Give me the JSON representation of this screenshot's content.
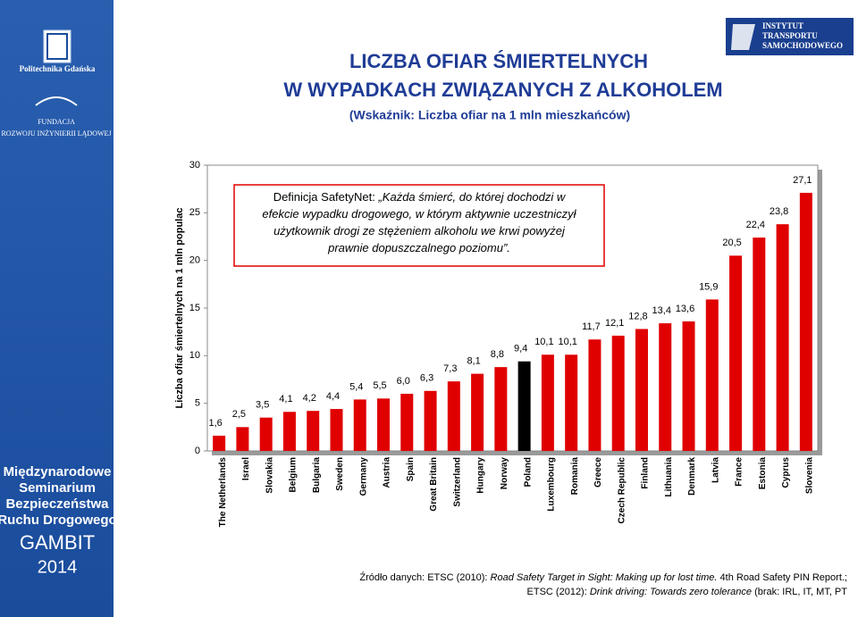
{
  "chart_data": {
    "type": "bar",
    "title": "LICZBA OFIAR ŚMIERTELNYCH",
    "title_line2": "W WYPADKACH ZWIĄZANYCH Z ALKOHOLEM",
    "subtitle": "(Wskaźnik: Liczba ofiar na 1 mln mieszkańców)",
    "y_label": "Liczba ofiar śmiertelnych na 1 mln populac",
    "categories": [
      "The Netherlands",
      "Israel",
      "Slovakia",
      "Belgium",
      "Bulgaria",
      "Sweden",
      "Germany",
      "Austria",
      "Spain",
      "Great Britain",
      "Switzerland",
      "Hungary",
      "Norway",
      "Poland",
      "Luxembourg",
      "Romania",
      "Greece",
      "Czech Republic",
      "Finland",
      "Lithuania",
      "Denmark",
      "Latvia",
      "France",
      "Estonia",
      "Cyprus",
      "Slovenia"
    ],
    "values": [
      1.6,
      2.5,
      3.5,
      4.1,
      4.2,
      4.4,
      5.4,
      5.5,
      6.0,
      6.3,
      7.3,
      8.1,
      8.8,
      9.4,
      10.1,
      10.1,
      11.7,
      12.1,
      12.8,
      13.4,
      13.6,
      15.9,
      20.5,
      22.4,
      23.8,
      27.1
    ],
    "value_labels": [
      "1,6",
      "2,5",
      "3,5",
      "4,1",
      "4,2",
      "4,4",
      "5,4",
      "5,5",
      "6,0",
      "6,3",
      "7,3",
      "8,1",
      "8,8",
      "9,4",
      "10,1",
      "10,1",
      "11,7",
      "12,1",
      "12,8",
      "13,4",
      "13,6",
      "15,9",
      "20,5",
      "22,4",
      "23,8",
      "27,1"
    ],
    "colors": [
      "#e00000",
      "#e00000",
      "#e00000",
      "#e00000",
      "#e00000",
      "#e00000",
      "#e00000",
      "#e00000",
      "#e00000",
      "#e00000",
      "#e00000",
      "#e00000",
      "#e00000",
      "#000000",
      "#e00000",
      "#e00000",
      "#e00000",
      "#e00000",
      "#e00000",
      "#e00000",
      "#e00000",
      "#e00000",
      "#e00000",
      "#e00000",
      "#e00000",
      "#e00000"
    ],
    "ylim": [
      0,
      30
    ],
    "yticks": [
      0,
      5,
      10,
      15,
      20,
      25,
      30
    ],
    "grid": false
  },
  "definition": {
    "label": "Definicja SafetyNet:",
    "lines": [
      " „Każda śmierć, do której dochodzi w",
      "efekcie wypadku drogowego, w którym aktywnie uczestniczył",
      "użytkownik drogi ze stężeniem alkoholu we krwi powyżej",
      "prawnie dopuszczalnego poziomu”."
    ]
  },
  "source": [
    [
      "Źródło danych: ETSC (2010): ",
      "Road Safety Target in Sight: Making up for lost time.",
      " 4th Road Safety PIN Report.;"
    ],
    [
      "ETSC (2012): ",
      "Drink driving: Towards zero tolerance",
      " (brak: IRL, IT, MT, PT"
    ]
  ],
  "sidebar": {
    "university": "Politechnika Gdańska",
    "foundation": [
      "FUNDACJA",
      "ROZWOJU INŻYNIERII LĄDOWEJ"
    ],
    "seminar": [
      "Międzynarodowe",
      "Seminarium",
      "Bezpieczeństwa",
      "Ruchu Drogowego"
    ],
    "gambit": "GAMBIT",
    "year": "2014"
  },
  "its_logo": [
    "INSTYTUT",
    "TRANSPORTU",
    "SAMOCHODOWEGO"
  ]
}
